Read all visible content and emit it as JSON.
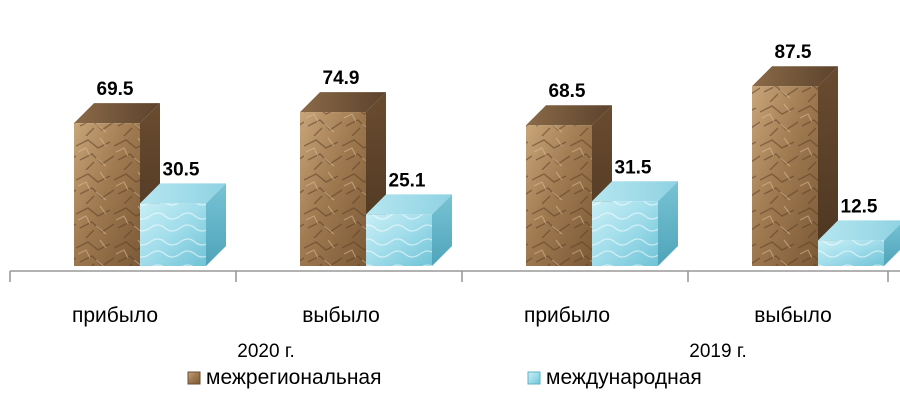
{
  "chart_data": {
    "type": "bar",
    "bar_style": "3d",
    "groups": [
      {
        "label": "2020 г.",
        "categories": [
          "прибыло",
          "выбыло"
        ]
      },
      {
        "label": "2019 г.",
        "categories": [
          "прибыло",
          "выбыло"
        ]
      }
    ],
    "categories": [
      "прибыло",
      "выбыло",
      "прибыло",
      "выбыло"
    ],
    "series": [
      {
        "name": "межрегиональная",
        "values": [
          69.5,
          74.9,
          68.5,
          87.5
        ],
        "color": "#a07a50",
        "texture": "rock"
      },
      {
        "name": "международная",
        "values": [
          30.5,
          25.1,
          31.5,
          12.5
        ],
        "color": "#9fdcea",
        "texture": "water"
      }
    ],
    "data_labels": true,
    "ylim": [
      0,
      100
    ],
    "grid": false,
    "legend_position": "bottom"
  }
}
